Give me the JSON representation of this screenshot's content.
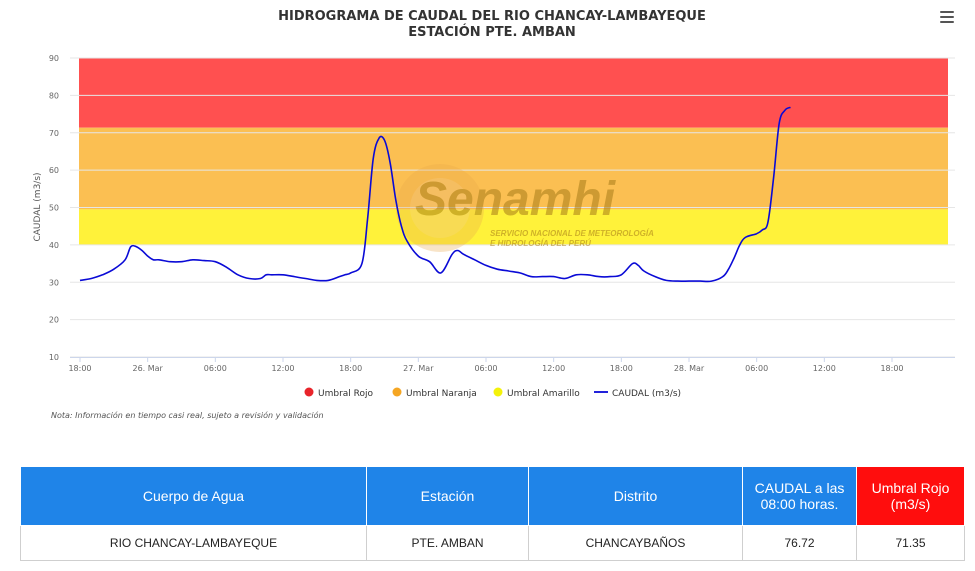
{
  "title_line1": "HIDROGRAMA DE CAUDAL DEL RIO CHANCAY-LAMBAYEQUE",
  "title_line2": "ESTACIÓN PTE. AMBAN",
  "watermark": {
    "name": "Senamhi",
    "line1": "SERVICIO NACIONAL DE METEOROLOGÍA",
    "line2": "E HIDROLOGÍA DEL PERÚ"
  },
  "note": "Nota: Información en tiempo casi real, sujeto a revisión y validación",
  "menu_icon": "hamburger-menu-icon",
  "chart_data": {
    "type": "line",
    "title": "HIDROGRAMA DE CAUDAL DEL RIO CHANCAY-LAMBAYEQUE",
    "subtitle": "ESTACIÓN PTE. AMBAN",
    "ylabel": "CAUDAL (m3/s)",
    "ylim": [
      10,
      90
    ],
    "yticks": [
      10,
      20,
      30,
      40,
      50,
      60,
      70,
      80,
      90
    ],
    "xlim": [
      0,
      78
    ],
    "xticks": [
      {
        "h": 0,
        "label": "18:00"
      },
      {
        "h": 6,
        "label": "26. Mar"
      },
      {
        "h": 12,
        "label": "06:00"
      },
      {
        "h": 18,
        "label": "12:00"
      },
      {
        "h": 24,
        "label": "18:00"
      },
      {
        "h": 30,
        "label": "27. Mar"
      },
      {
        "h": 36,
        "label": "06:00"
      },
      {
        "h": 42,
        "label": "12:00"
      },
      {
        "h": 48,
        "label": "18:00"
      },
      {
        "h": 54,
        "label": "28. Mar"
      },
      {
        "h": 60,
        "label": "06:00"
      },
      {
        "h": 66,
        "label": "12:00"
      },
      {
        "h": 72,
        "label": "18:00"
      }
    ],
    "bands": [
      {
        "name": "Umbral Rojo",
        "from": 71.35,
        "to": 90,
        "color": "#ff5050"
      },
      {
        "name": "Umbral Naranja",
        "from": 49.5,
        "to": 71.35,
        "color": "#fbbf52"
      },
      {
        "name": "Umbral Amarillo",
        "from": 40,
        "to": 49.5,
        "color": "#fff23a"
      }
    ],
    "legend": [
      {
        "name": "Umbral Rojo",
        "color": "#e8242a",
        "symbol": "dot"
      },
      {
        "name": "Umbral Naranja",
        "color": "#f5a623",
        "symbol": "dot"
      },
      {
        "name": "Umbral Amarillo",
        "color": "#f4f20a",
        "symbol": "dot"
      },
      {
        "name": "CAUDAL (m3/s)",
        "color": "#0a0ad6",
        "symbol": "line"
      }
    ],
    "legend_position": "bottom",
    "series": [
      {
        "name": "CAUDAL (m3/s)",
        "color": "#0a0ad6",
        "x": [
          0,
          1,
          2,
          3,
          4,
          4.5,
          5,
          5.5,
          6,
          6.5,
          7,
          8,
          9,
          10,
          11,
          12,
          13,
          14,
          15,
          16,
          16.5,
          17,
          18,
          19,
          20,
          21,
          22,
          23,
          23.5,
          24,
          25,
          25.5,
          26,
          26.5,
          27,
          27.5,
          28,
          28.5,
          29,
          30,
          31,
          32,
          33,
          33.5,
          34,
          35,
          36,
          37,
          38,
          39,
          40,
          41,
          42,
          43,
          44,
          45,
          46,
          47,
          48,
          49,
          49.5,
          50,
          51,
          52,
          53,
          54,
          55,
          56,
          57,
          57.5,
          58,
          58.5,
          59,
          60,
          60.5,
          61,
          61.5,
          62,
          62.5,
          63
        ],
        "y": [
          30.5,
          31,
          32,
          33.5,
          36,
          39.5,
          39.5,
          38.5,
          37,
          36,
          36,
          35.5,
          35.5,
          36,
          35.8,
          35.5,
          34,
          32,
          31,
          31,
          32,
          32,
          32,
          31.5,
          31,
          30.5,
          30.5,
          31.5,
          32,
          32.5,
          35,
          47,
          63,
          68.5,
          68,
          62,
          52,
          45,
          41,
          37,
          35.5,
          32.5,
          37.5,
          38.5,
          37.5,
          36,
          34.5,
          33.5,
          33,
          32.5,
          31.5,
          31.5,
          31.5,
          31,
          32,
          32,
          31.5,
          31.5,
          32,
          35,
          34.5,
          33,
          31.5,
          30.5,
          30.3,
          30.3,
          30.3,
          30.3,
          31.5,
          33.5,
          36.5,
          40,
          42,
          43,
          44,
          46,
          58,
          72.5,
          76,
          76.8
        ]
      }
    ],
    "grid": true
  },
  "table": {
    "headers": [
      "Cuerpo de Agua",
      "Estación",
      "Distrito",
      "CAUDAL a las 08:00 horas.",
      "Umbral Rojo (m3/s)"
    ],
    "row": [
      "RIO CHANCAY-LAMBAYEQUE",
      "PTE. AMBAN",
      "CHANCAYBAÑOS",
      "76.72",
      "71.35"
    ]
  }
}
